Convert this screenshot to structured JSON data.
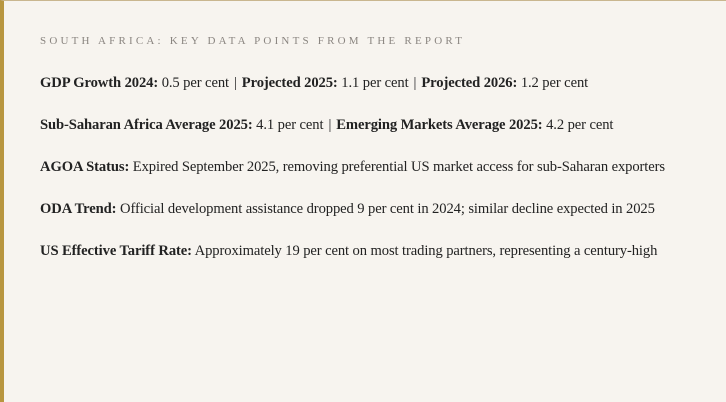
{
  "heading": "South Africa: Key Data Points from the Report",
  "colors": {
    "accent_border": "#b8963f",
    "background": "#f7f4ef"
  },
  "rows": [
    {
      "items": [
        {
          "label": "GDP Growth 2024:",
          "value": "0.5 per cent"
        },
        {
          "label": "Projected 2025:",
          "value": "1.1 per cent"
        },
        {
          "label": "Projected 2026:",
          "value": "1.2 per cent"
        }
      ]
    },
    {
      "items": [
        {
          "label": "Sub-Saharan Africa Average 2025:",
          "value": "4.1 per cent"
        },
        {
          "label": "Emerging Markets Average 2025:",
          "value": "4.2 per cent"
        }
      ]
    },
    {
      "items": [
        {
          "label": "AGOA Status:",
          "value": "Expired September 2025, removing preferential US market access for sub-Saharan exporters"
        }
      ]
    },
    {
      "items": [
        {
          "label": "ODA Trend:",
          "value": "Official development assistance dropped 9 per cent in 2024; similar decline expected in 2025"
        }
      ]
    },
    {
      "items": [
        {
          "label": "US Effective Tariff Rate:",
          "value": "Approximately 19 per cent on most trading partners, representing a century-high"
        }
      ]
    }
  ],
  "separator": "|"
}
